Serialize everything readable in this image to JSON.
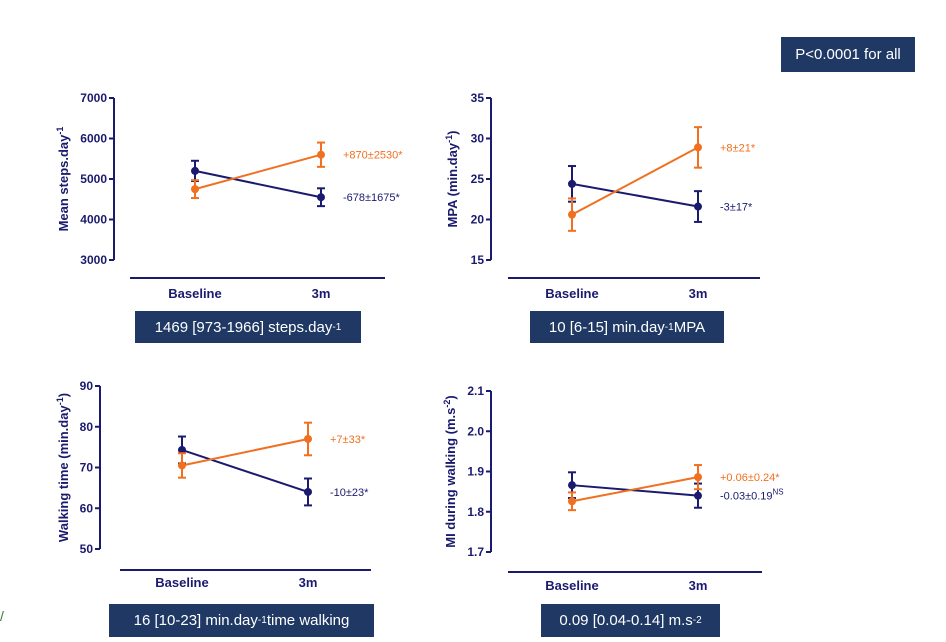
{
  "header": {
    "badge": "P<0.0001 for all"
  },
  "colors": {
    "navy": "#1a1a6e",
    "orange": "#f07020",
    "box": "#1f3864"
  },
  "boxes": [
    {
      "main": "1469 [973-1966] steps.day",
      "sup": "-1",
      "tail": ""
    },
    {
      "main": "10 [6-15] min.day",
      "sup": "-1",
      "tail": " MPA"
    },
    {
      "main": "16 [10-23] min.day",
      "sup": "-1",
      "tail": " time walking"
    },
    {
      "main": "0.09 [0.04-0.14] m.s",
      "sup": "-2",
      "tail": ""
    }
  ],
  "chart_data": [
    {
      "type": "line",
      "categories": [
        "Baseline",
        "3m"
      ],
      "ylabel": "Mean steps.day",
      "ylabel_sup": "-1",
      "ylim": [
        3000,
        7000
      ],
      "yticks": [
        "3000",
        "4000",
        "5000",
        "6000",
        "7000"
      ],
      "series": [
        {
          "color": "navy",
          "values": [
            5200,
            4550
          ],
          "err": [
            250,
            220
          ],
          "annotation": "-678±1675*",
          "annotation_sup": ""
        },
        {
          "color": "orange",
          "values": [
            4750,
            5600
          ],
          "err": [
            220,
            300
          ],
          "annotation": "+870±2530*",
          "annotation_sup": ""
        }
      ]
    },
    {
      "type": "line",
      "categories": [
        "Baseline",
        "3m"
      ],
      "ylabel": "MPA (min.day",
      "ylabel_sup": "-1",
      "ylabel_tail": ")",
      "ylim": [
        15,
        35
      ],
      "yticks": [
        "15",
        "20",
        "25",
        "30",
        "35"
      ],
      "series": [
        {
          "color": "navy",
          "values": [
            24.4,
            21.6
          ],
          "err": [
            2.2,
            1.9
          ],
          "annotation": "-3±17*",
          "annotation_sup": ""
        },
        {
          "color": "orange",
          "values": [
            20.6,
            28.9
          ],
          "err": [
            2.0,
            2.5
          ],
          "annotation": "+8±21*",
          "annotation_sup": ""
        }
      ]
    },
    {
      "type": "line",
      "categories": [
        "Baseline",
        "3m"
      ],
      "ylabel": "Walking time (min.day",
      "ylabel_sup": "-1",
      "ylabel_tail": ")",
      "ylim": [
        50,
        90
      ],
      "yticks": [
        "50",
        "60",
        "70",
        "80",
        "90"
      ],
      "series": [
        {
          "color": "navy",
          "values": [
            74.3,
            64.0
          ],
          "err": [
            3.3,
            3.3
          ],
          "annotation": "-10±23*",
          "annotation_sup": ""
        },
        {
          "color": "orange",
          "values": [
            70.5,
            77.0
          ],
          "err": [
            3.0,
            4.0
          ],
          "annotation": "+7±33*",
          "annotation_sup": ""
        }
      ]
    },
    {
      "type": "line",
      "categories": [
        "Baseline",
        "3m"
      ],
      "ylabel": "MI during walking (m.s",
      "ylabel_sup": "-2",
      "ylabel_tail": ")",
      "ylim": [
        1.7,
        2.1
      ],
      "yticks": [
        "1.7",
        "1.8",
        "1.9",
        "2.0",
        "2.1"
      ],
      "series": [
        {
          "color": "navy",
          "values": [
            1.866,
            1.84
          ],
          "err": [
            0.032,
            0.03
          ],
          "annotation": "-0.03±0.19",
          "annotation_sup": "NS"
        },
        {
          "color": "orange",
          "values": [
            1.826,
            1.886
          ],
          "err": [
            0.022,
            0.03
          ],
          "annotation": "+0.06±0.24*",
          "annotation_sup": ""
        }
      ]
    }
  ]
}
